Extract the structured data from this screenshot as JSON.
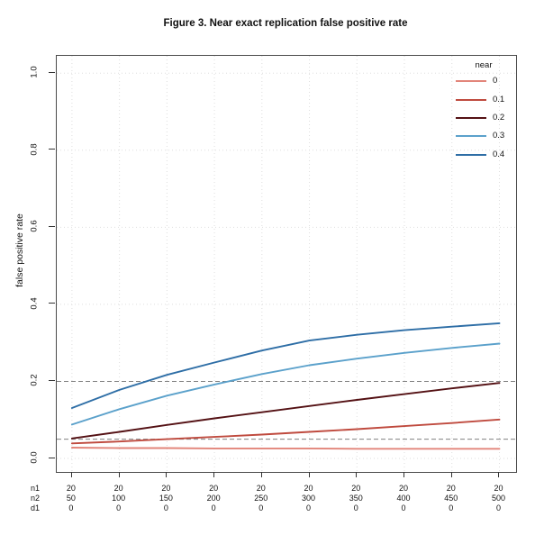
{
  "figure": {
    "title": "Figure 3. Near exact replication false positive rate"
  },
  "chart_data": {
    "type": "line",
    "title": "Figure 3. Near exact replication false positive rate",
    "xlabel": "",
    "ylabel": "false positive rate",
    "ylim": [
      0.0,
      1.0
    ],
    "grid": "dotted",
    "legend_position": "top-right-inside",
    "legend_title": "near",
    "yticks": [
      {
        "value": 0.0,
        "label": "0.0"
      },
      {
        "value": 0.2,
        "label": "0.2"
      },
      {
        "value": 0.4,
        "label": "0.4"
      },
      {
        "value": 0.6,
        "label": "0.6"
      },
      {
        "value": 0.8,
        "label": "0.8"
      },
      {
        "value": 1.0,
        "label": "1.0"
      }
    ],
    "reference_lines": [
      {
        "y": 0.05,
        "style": "dashed",
        "color": "#808080"
      },
      {
        "y": 0.2,
        "style": "dashed",
        "color": "#808080"
      }
    ],
    "x": [
      50,
      100,
      150,
      200,
      250,
      300,
      350,
      400,
      450,
      500
    ],
    "x_axis_rows": [
      {
        "label": "n1",
        "values": [
          "20",
          "20",
          "20",
          "20",
          "20",
          "20",
          "20",
          "20",
          "20",
          "20"
        ]
      },
      {
        "label": "n2",
        "values": [
          "50",
          "100",
          "150",
          "200",
          "250",
          "300",
          "350",
          "400",
          "450",
          "500"
        ]
      },
      {
        "label": "d1",
        "values": [
          "0",
          "0",
          "0",
          "0",
          "0",
          "0",
          "0",
          "0",
          "0",
          "0"
        ]
      }
    ],
    "series": [
      {
        "name": "0",
        "color": "#E2857A",
        "values": [
          0.028,
          0.027,
          0.027,
          0.026,
          0.026,
          0.026,
          0.025,
          0.025,
          0.025,
          0.025
        ]
      },
      {
        "name": "0.1",
        "color": "#BF4A3E",
        "values": [
          0.039,
          0.044,
          0.05,
          0.056,
          0.062,
          0.069,
          0.076,
          0.084,
          0.092,
          0.101
        ]
      },
      {
        "name": "0.2",
        "color": "#541114",
        "values": [
          0.052,
          0.069,
          0.087,
          0.104,
          0.12,
          0.136,
          0.152,
          0.167,
          0.182,
          0.196
        ]
      },
      {
        "name": "0.3",
        "color": "#5BA1CB",
        "values": [
          0.088,
          0.128,
          0.163,
          0.192,
          0.219,
          0.242,
          0.259,
          0.274,
          0.287,
          0.298
        ]
      },
      {
        "name": "0.4",
        "color": "#2E6EA6",
        "values": [
          0.131,
          0.178,
          0.217,
          0.249,
          0.28,
          0.306,
          0.321,
          0.333,
          0.342,
          0.351
        ]
      }
    ],
    "grid_color": "#dedede",
    "axis_color": "#4a4a4a"
  }
}
